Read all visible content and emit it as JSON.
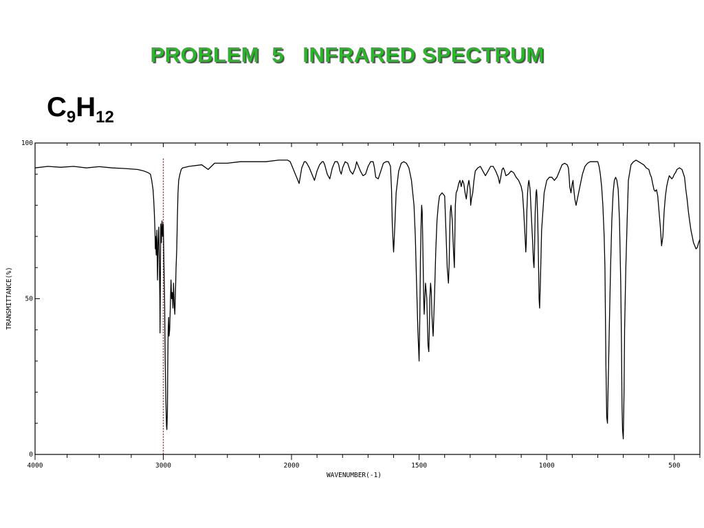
{
  "slide": {
    "title": "PROBLEM  5   INFRARED SPECTRUM",
    "formula": {
      "base1": "C",
      "sub1": "9",
      "base2": "H",
      "sub2": "12"
    }
  },
  "colors": {
    "title": "#2db52d",
    "marker": "#d10000",
    "trace": "#000000"
  },
  "chart_data": {
    "type": "line",
    "xlabel": "WAVENUMBER(-1)",
    "ylabel": "TRANSMITTANCE(%)",
    "xlim": [
      4000,
      400
    ],
    "ylim": [
      0,
      100
    ],
    "xticks": [
      4000,
      3000,
      2000,
      1500,
      1000,
      500
    ],
    "yticks": [
      0,
      50,
      100
    ],
    "xtick_labels": [
      "4000",
      "3000",
      "2000",
      "1500",
      "1000",
      "500"
    ],
    "ytick_labels": [
      "0",
      "50",
      "100"
    ],
    "marker_line": {
      "x": 3000,
      "y_top": 95,
      "style": "dotted",
      "color": "#d10000"
    },
    "series": [
      {
        "x": [
          4000,
          3900,
          3800,
          3700,
          3600,
          3500,
          3400,
          3300,
          3200,
          3150,
          3120,
          3100,
          3090,
          3080,
          3075,
          3070,
          3065,
          3062,
          3060,
          3055,
          3050,
          3045,
          3040,
          3035,
          3030,
          3027,
          3025,
          3022,
          3020,
          3015,
          3010,
          3005,
          3000,
          2995,
          2990,
          2985,
          2980,
          2975,
          2972,
          2968,
          2965,
          2962,
          2958,
          2955,
          2950,
          2945,
          2940,
          2935,
          2930,
          2925,
          2920,
          2915,
          2910,
          2905,
          2900,
          2895,
          2890,
          2885,
          2880,
          2870,
          2860,
          2850,
          2800,
          2700,
          2650,
          2600,
          2500,
          2400,
          2300,
          2200,
          2100,
          2050,
          2030,
          2010,
          2000,
          1990,
          1980,
          1970,
          1960,
          1950,
          1945,
          1940,
          1930,
          1920,
          1910,
          1900,
          1890,
          1880,
          1875,
          1870,
          1860,
          1850,
          1840,
          1830,
          1820,
          1815,
          1810,
          1805,
          1800,
          1790,
          1780,
          1770,
          1760,
          1750,
          1745,
          1740,
          1730,
          1720,
          1710,
          1700,
          1690,
          1680,
          1675,
          1670,
          1660,
          1650,
          1640,
          1630,
          1620,
          1612,
          1608,
          1605,
          1602,
          1600,
          1598,
          1595,
          1590,
          1580,
          1570,
          1560,
          1550,
          1540,
          1530,
          1520,
          1515,
          1510,
          1505,
          1500,
          1497,
          1495,
          1492,
          1490,
          1488,
          1485,
          1482,
          1480,
          1475,
          1470,
          1465,
          1462,
          1460,
          1458,
          1455,
          1452,
          1450,
          1448,
          1445,
          1440,
          1435,
          1430,
          1425,
          1420,
          1410,
          1400,
          1395,
          1390,
          1385,
          1382,
          1380,
          1378,
          1375,
          1370,
          1365,
          1362,
          1360,
          1358,
          1355,
          1350,
          1345,
          1340,
          1335,
          1330,
          1325,
          1320,
          1315,
          1310,
          1305,
          1300,
          1298,
          1295,
          1290,
          1285,
          1280,
          1270,
          1260,
          1250,
          1240,
          1230,
          1220,
          1210,
          1200,
          1190,
          1185,
          1180,
          1175,
          1170,
          1165,
          1160,
          1150,
          1140,
          1130,
          1120,
          1110,
          1100,
          1095,
          1090,
          1085,
          1082,
          1080,
          1078,
          1075,
          1072,
          1070,
          1065,
          1060,
          1055,
          1052,
          1050,
          1048,
          1045,
          1042,
          1040,
          1038,
          1035,
          1032,
          1030,
          1028,
          1025,
          1020,
          1010,
          1000,
          990,
          980,
          970,
          960,
          950,
          940,
          930,
          920,
          915,
          912,
          910,
          905,
          900,
          897,
          895,
          890,
          885,
          880,
          870,
          860,
          850,
          840,
          830,
          820,
          810,
          800,
          795,
          790,
          785,
          780,
          775,
          772,
          770,
          768,
          765,
          762,
          760,
          755,
          750,
          745,
          740,
          735,
          730,
          725,
          720,
          715,
          710,
          707,
          705,
          703,
          700,
          697,
          695,
          690,
          685,
          680,
          670,
          660,
          650,
          640,
          630,
          620,
          610,
          600,
          595,
          590,
          585,
          580,
          575,
          570,
          565,
          560,
          555,
          550,
          545,
          540,
          535,
          530,
          525,
          520,
          515,
          510,
          505,
          500,
          495,
          490,
          480,
          470,
          460,
          455,
          450,
          445,
          440,
          435,
          430,
          425,
          420,
          415,
          410,
          405,
          400
        ],
        "y": [
          92,
          92.5,
          92.2,
          92.5,
          92,
          92.4,
          92,
          91.8,
          91.5,
          91,
          90.5,
          90,
          88,
          85,
          82,
          78,
          72,
          66,
          70,
          64,
          72,
          56,
          68,
          73,
          60,
          50,
          39,
          62,
          74,
          68,
          75,
          70,
          74,
          62,
          50,
          30,
          18,
          9,
          8,
          14,
          28,
          40,
          44,
          38,
          40,
          48,
          56,
          50,
          52,
          47,
          55,
          48,
          45,
          52,
          60,
          66,
          76,
          84,
          88,
          90,
          91.5,
          92,
          92.5,
          93,
          91.5,
          93.5,
          93.5,
          94,
          94,
          94,
          94.5,
          94.5,
          94.5,
          94,
          93,
          91,
          89,
          87,
          92,
          94,
          94,
          93.5,
          92,
          90,
          88,
          91,
          93,
          94,
          94,
          93,
          90,
          88.5,
          92,
          94,
          94,
          93,
          91,
          90,
          92,
          94,
          93.5,
          91,
          90,
          92,
          94,
          93,
          91,
          89.5,
          90,
          92.5,
          94,
          94,
          92,
          89,
          88.5,
          91,
          93.5,
          94,
          94,
          92.5,
          85,
          74,
          68,
          65,
          68,
          74,
          84,
          91,
          93.5,
          94,
          93.5,
          92,
          88,
          80,
          70,
          55,
          40,
          30,
          45,
          62,
          75,
          80,
          78,
          65,
          50,
          45,
          55,
          50,
          35,
          33,
          40,
          50,
          55,
          52,
          45,
          42,
          38,
          50,
          65,
          75,
          80,
          83,
          84,
          83,
          72,
          60,
          55,
          62,
          72,
          78,
          80,
          75,
          65,
          60,
          70,
          80,
          84,
          85,
          87,
          88,
          86,
          88,
          87,
          84,
          82,
          86,
          88,
          85,
          80,
          82,
          84,
          88,
          91,
          92,
          92.5,
          91,
          89.5,
          91,
          92.5,
          92.5,
          91,
          89,
          87,
          89,
          91.5,
          92,
          91,
          89.5,
          90,
          91,
          90.5,
          89,
          88,
          86,
          84,
          78,
          70,
          65,
          68,
          78,
          84,
          87,
          88,
          85,
          76,
          68,
          62,
          60,
          65,
          78,
          84,
          85,
          83,
          74,
          60,
          50,
          47,
          55,
          72,
          84,
          88,
          89,
          89,
          88,
          89,
          91,
          93,
          93.5,
          93,
          92,
          89,
          86,
          84,
          87,
          88,
          86,
          82,
          80,
          82,
          86,
          90,
          92.5,
          93.5,
          94,
          94,
          94,
          94,
          92.5,
          90,
          86,
          80,
          70,
          60,
          45,
          28,
          12,
          10,
          20,
          40,
          60,
          75,
          84,
          88,
          89,
          88,
          85,
          75,
          55,
          35,
          15,
          8,
          5,
          20,
          40,
          60,
          75,
          88,
          93,
          94,
          94.5,
          94,
          93.5,
          93,
          92,
          91.5,
          90,
          89,
          87,
          85,
          84.5,
          85,
          83,
          78,
          73,
          67,
          70,
          78,
          83,
          86,
          88,
          89.5,
          89,
          88.5,
          89,
          90,
          90.5,
          91.5,
          92,
          91.5,
          89,
          85,
          82,
          78,
          75,
          72,
          70,
          68,
          67,
          66,
          66.5,
          68,
          69
        ]
      }
    ]
  }
}
